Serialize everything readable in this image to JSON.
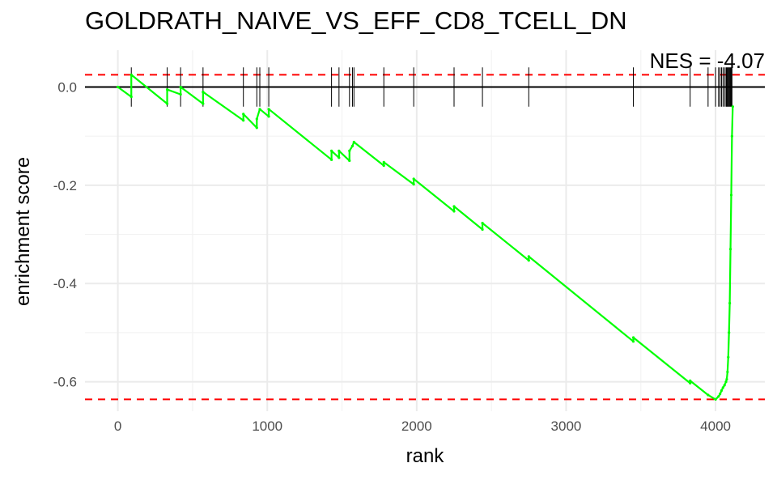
{
  "chart_data": {
    "type": "line",
    "title": "GOLDRATH_NAIVE_VS_EFF_CD8_TCELL_DN",
    "xlabel": "rank",
    "ylabel": "enrichment score",
    "annotation": "NES = -4.07",
    "xlim": [
      -220,
      4330
    ],
    "ylim": [
      -0.66,
      0.075
    ],
    "x_ticks": [
      0,
      1000,
      2000,
      3000,
      4000
    ],
    "x_tick_labels": [
      "0",
      "1000",
      "2000",
      "3000",
      "4000"
    ],
    "y_ticks": [
      0.0,
      -0.2,
      -0.4,
      -0.6
    ],
    "y_tick_labels": [
      "0.0",
      "-0.2",
      "-0.4",
      "-0.6"
    ],
    "grid": true,
    "line_color": "#00ff00",
    "threshold_color": "#ff0000",
    "thresholds": [
      0.025,
      -0.636
    ],
    "hit_ranks": [
      90,
      330,
      420,
      570,
      840,
      930,
      950,
      1010,
      1430,
      1480,
      1550,
      1570,
      1580,
      1780,
      1980,
      2250,
      2440,
      2750,
      3450,
      3830,
      3950,
      4000,
      4020,
      4030,
      4040,
      4050,
      4060,
      4070,
      4075,
      4080,
      4085,
      4090,
      4095,
      4100,
      4105,
      4110
    ],
    "series": [
      {
        "values": [
          [
            0,
            0.0
          ],
          [
            90,
            -0.02
          ],
          [
            90,
            0.025
          ],
          [
            330,
            -0.034
          ],
          [
            330,
            -0.005
          ],
          [
            420,
            -0.015
          ],
          [
            420,
            0.0
          ],
          [
            570,
            -0.034
          ],
          [
            570,
            -0.01
          ],
          [
            840,
            -0.068
          ],
          [
            840,
            -0.055
          ],
          [
            930,
            -0.083
          ],
          [
            930,
            -0.065
          ],
          [
            950,
            -0.045
          ],
          [
            1010,
            -0.06
          ],
          [
            1010,
            -0.045
          ],
          [
            1430,
            -0.148
          ],
          [
            1430,
            -0.13
          ],
          [
            1480,
            -0.144
          ],
          [
            1480,
            -0.13
          ],
          [
            1550,
            -0.15
          ],
          [
            1550,
            -0.13
          ],
          [
            1570,
            -0.12
          ],
          [
            1580,
            -0.112
          ],
          [
            1780,
            -0.16
          ],
          [
            1780,
            -0.153
          ],
          [
            1980,
            -0.198
          ],
          [
            1980,
            -0.187
          ],
          [
            2250,
            -0.253
          ],
          [
            2250,
            -0.243
          ],
          [
            2440,
            -0.29
          ],
          [
            2440,
            -0.277
          ],
          [
            2750,
            -0.353
          ],
          [
            2750,
            -0.345
          ],
          [
            3450,
            -0.518
          ],
          [
            3450,
            -0.51
          ],
          [
            3830,
            -0.603
          ],
          [
            3830,
            -0.598
          ],
          [
            3950,
            -0.627
          ],
          [
            4000,
            -0.636
          ],
          [
            4020,
            -0.63
          ],
          [
            4030,
            -0.625
          ],
          [
            4040,
            -0.618
          ],
          [
            4050,
            -0.612
          ],
          [
            4060,
            -0.607
          ],
          [
            4070,
            -0.6
          ],
          [
            4075,
            -0.595
          ],
          [
            4080,
            -0.58
          ],
          [
            4085,
            -0.55
          ],
          [
            4090,
            -0.5
          ],
          [
            4095,
            -0.44
          ],
          [
            4100,
            -0.33
          ],
          [
            4105,
            -0.22
          ],
          [
            4110,
            -0.1
          ],
          [
            4115,
            -0.04
          ]
        ]
      }
    ]
  }
}
